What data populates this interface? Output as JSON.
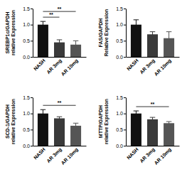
{
  "chart_data": [
    {
      "type": "bar",
      "y_label": [
        "SREBP1c/GAPDH",
        "relative Expression"
      ],
      "categories": [
        "NASH",
        "AR 3mg",
        "AR 10mg"
      ],
      "values": [
        1.0,
        0.45,
        0.38
      ],
      "errors": [
        0.1,
        0.08,
        0.12
      ],
      "colors": [
        "#111111",
        "#3a3a3a",
        "#555555"
      ],
      "ylim": [
        0,
        1.5
      ],
      "yticks": [
        {
          "value": 0,
          "label": "0.0"
        },
        0.5,
        {
          "value": 1,
          "label": "1.0"
        },
        1.5
      ],
      "annotations": [
        {
          "text": "**",
          "pair": [
            "NASH",
            "AR 3mg"
          ]
        },
        {
          "text": "**",
          "pair": [
            "NASH",
            "AR 10mg"
          ]
        }
      ]
    },
    {
      "type": "bar",
      "y_label": [
        "FAS/GAPDH",
        "Relative Expression"
      ],
      "categories": [
        "NASH",
        "AR 3mg",
        "AR 10mg"
      ],
      "values": [
        1.0,
        0.7,
        0.58
      ],
      "errors": [
        0.15,
        0.08,
        0.2
      ],
      "colors": [
        "#111111",
        "#3a3a3a",
        "#555555"
      ],
      "ylim": [
        0,
        1.5
      ],
      "yticks": [
        {
          "value": 0,
          "label": "0.0"
        },
        0.5,
        {
          "value": 1,
          "label": "1.0"
        },
        1.5
      ],
      "annotations": []
    },
    {
      "type": "bar",
      "y_label": [
        "SCD-1/GAPDH",
        "relative Expression"
      ],
      "categories": [
        "NASH",
        "AR 3mg",
        "AR 10mg"
      ],
      "values": [
        1.0,
        0.85,
        0.62
      ],
      "errors": [
        0.12,
        0.05,
        0.08
      ],
      "colors": [
        "#111111",
        "#3a3a3a",
        "#555555"
      ],
      "ylim": [
        0,
        1.5
      ],
      "yticks": [
        {
          "value": 0,
          "label": "0.0"
        },
        0.5,
        {
          "value": 1,
          "label": "1.0"
        },
        1.5
      ],
      "annotations": [
        {
          "text": "**",
          "pair": [
            "NASH",
            "AR 10mg"
          ]
        }
      ]
    },
    {
      "type": "bar",
      "y_label": [
        "MTTP/GAPDH",
        "relative Expression"
      ],
      "categories": [
        "NASH",
        "AR 3mg",
        "AR 10mg"
      ],
      "values": [
        1.0,
        0.82,
        0.7
      ],
      "errors": [
        0.08,
        0.06,
        0.05
      ],
      "colors": [
        "#111111",
        "#3a3a3a",
        "#555555"
      ],
      "ylim": [
        0,
        1.5
      ],
      "yticks": [
        {
          "value": 0,
          "label": "0.0"
        },
        0.5,
        {
          "value": 1,
          "label": "1.0"
        },
        1.5
      ],
      "annotations": [
        {
          "text": "**",
          "pair": [
            "NASH",
            "AR 10mg"
          ]
        }
      ]
    }
  ]
}
